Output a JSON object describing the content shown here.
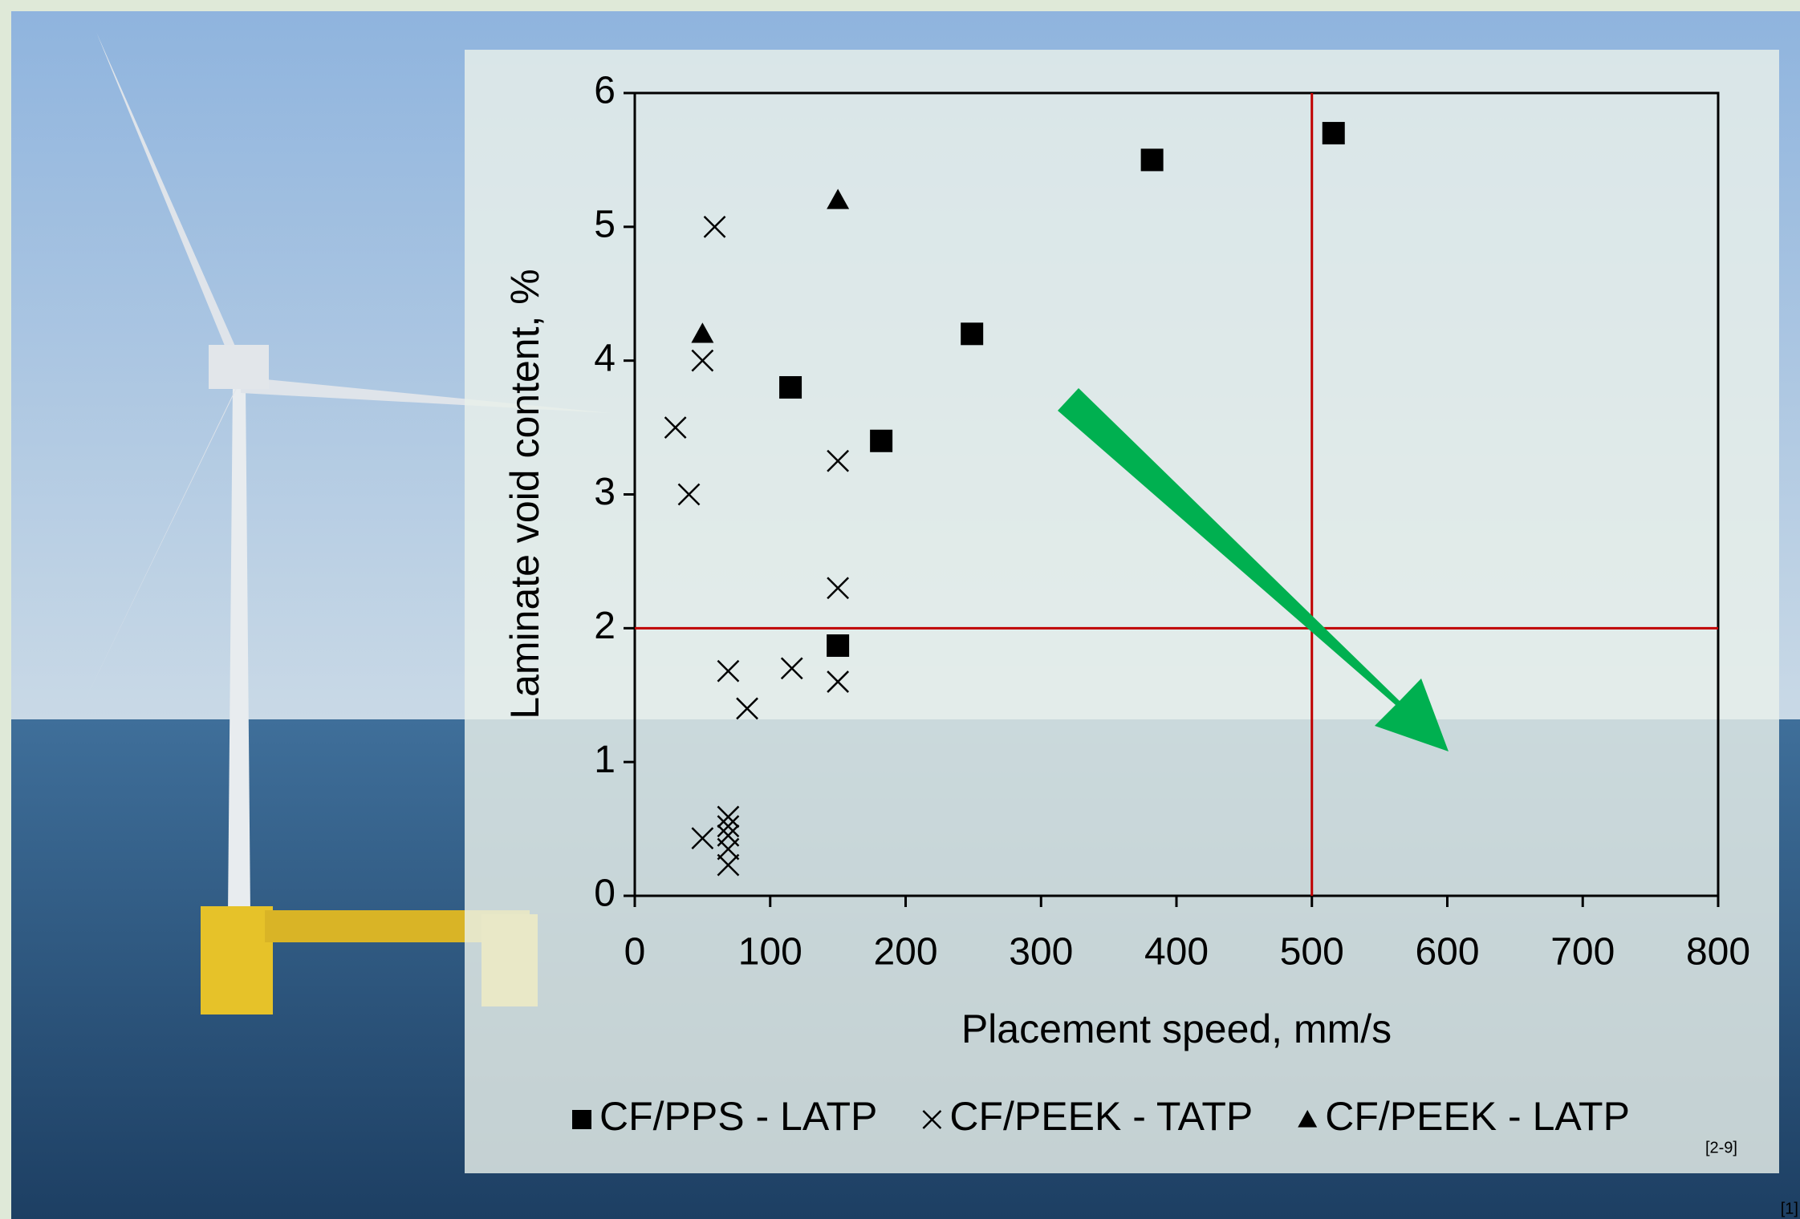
{
  "chart_data": {
    "type": "scatter",
    "x_label": "Placement speed, mm/s",
    "y_label": "Laminate void content, %",
    "xlim": [
      0,
      800
    ],
    "xticks": [
      0,
      100,
      200,
      300,
      400,
      500,
      600,
      700,
      800
    ],
    "ylim": [
      0,
      6
    ],
    "yticks": [
      0,
      1,
      2,
      3,
      4,
      5,
      6
    ],
    "series": [
      {
        "name": "CF/PPS - LATP",
        "color": "#000000",
        "marker": "square",
        "x": [
          516,
          382,
          249,
          115,
          182,
          150
        ],
        "values": [
          5.7,
          5.5,
          4.2,
          3.8,
          3.4,
          1.87
        ]
      },
      {
        "name": "CF/PEEK - TATP",
        "color": "#000000",
        "marker": "x",
        "x": [
          59,
          50,
          30,
          40,
          150,
          150,
          116,
          69,
          83,
          150,
          50,
          69,
          69,
          69,
          69,
          69
        ],
        "values": [
          5.0,
          4.0,
          3.5,
          3.0,
          3.25,
          2.3,
          1.7,
          1.68,
          1.4,
          1.6,
          0.43,
          0.59,
          0.52,
          0.45,
          0.35,
          0.23
        ]
      },
      {
        "name": "CF/PEEK - LATP",
        "color": "#000000",
        "marker": "triangle",
        "x": [
          50,
          150
        ],
        "values": [
          4.2,
          5.2
        ]
      }
    ],
    "reference_lines": {
      "color": "#c00000",
      "x": [
        500
      ],
      "y": [
        2
      ]
    },
    "legend": "bottom",
    "annotations": [
      "[2-9]",
      "[1]"
    ]
  }
}
